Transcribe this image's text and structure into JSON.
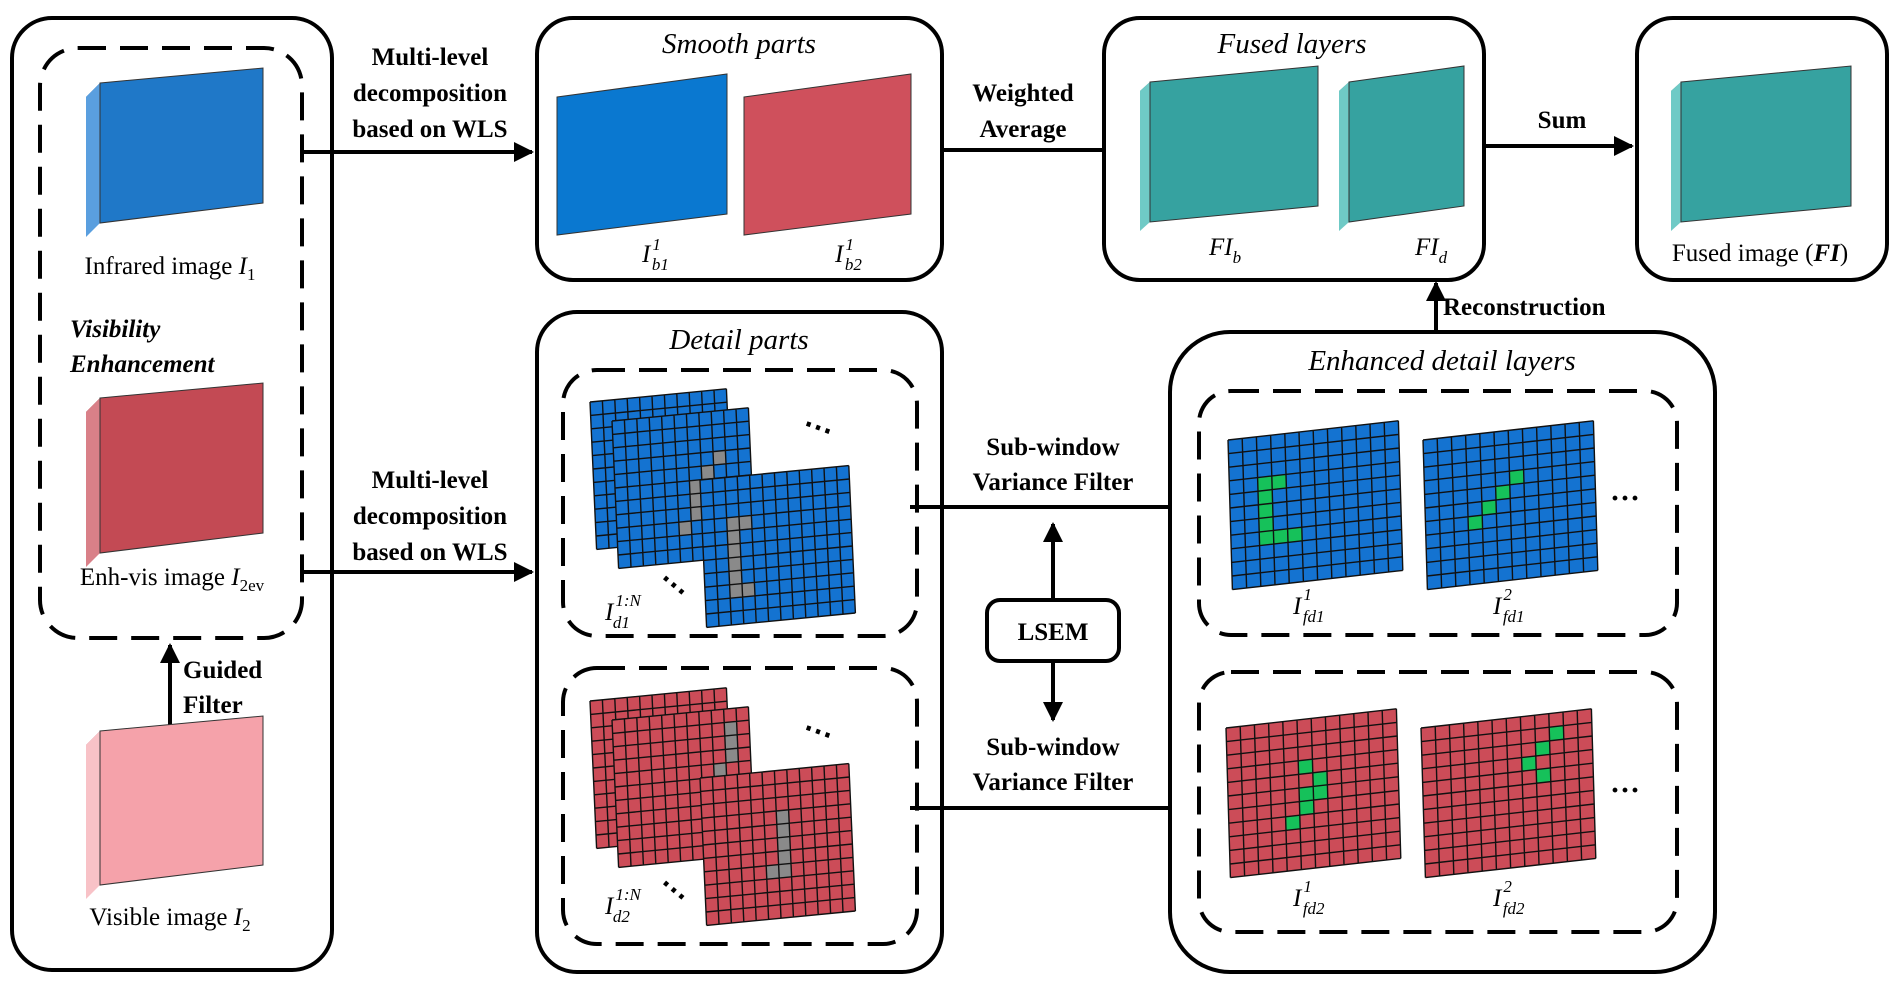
{
  "colors": {
    "infrared": "#1f78c8",
    "infrared_top": "#1a5fa0",
    "infrared_side": "#5a9fdf",
    "enhvis": "#c34a54",
    "enhvis_top": "#9f3a43",
    "enhvis_side": "#d98088",
    "visible": "#f5a2aa",
    "visible_top": "#c97179",
    "visible_side": "#f8c2c7",
    "smooth_blue": "#0a78d0",
    "smooth_red": "#cf505c",
    "fused": "#36a2a0",
    "fused_top": "#2a7f7d",
    "fused_side": "#6fcac6",
    "grid_blue": "#1473d1",
    "grid_red": "#cc4c58",
    "gray_cell": "#8a8a8a",
    "green_cell": "#16c15a"
  },
  "input_panel": {
    "infrared_caption": "Infrared image ",
    "infrared_sym": "I",
    "infrared_sub": "1",
    "enhancement_line1": "Visibility",
    "enhancement_line2": "Enhancement",
    "enhvis_caption": "Enh-vis image ",
    "enhvis_sym": "I",
    "enhvis_sub": "2ev",
    "visible_caption": "Visible image ",
    "visible_sym": "I",
    "visible_sub": "2",
    "guided_line1": "Guided",
    "guided_line2": "Filter"
  },
  "decomp_top": {
    "line1": "Multi-level",
    "line2": "decomposition",
    "line3": "based on WLS"
  },
  "decomp_bottom": {
    "line1": "Multi-level",
    "line2": "decomposition",
    "line3": "based on WLS"
  },
  "smooth_panel": {
    "title": "Smooth parts",
    "label1_sym": "I",
    "label1_sup": "1",
    "label1_sub": "b1",
    "label2_sym": "I",
    "label2_sup": "1",
    "label2_sub": "b2"
  },
  "weighted": {
    "line1": "Weighted",
    "line2": "Average"
  },
  "fused_panel": {
    "title": "Fused layers",
    "label1_sym": "FI",
    "label1_sub": "b",
    "label2_sym": "FI",
    "label2_sub": "d"
  },
  "sum_label": "Sum",
  "output_panel": {
    "caption_prefix": "Fused image (",
    "caption_sym": "FI",
    "caption_suffix": ")"
  },
  "reconstruction_label": "Reconstruction",
  "detail_panel": {
    "title": "Detail parts",
    "label1_sym": "I",
    "label1_sup": "1:N",
    "label1_sub": "d1",
    "label2_sym": "I",
    "label2_sup": "1:N",
    "label2_sub": "d2",
    "ellipsis": "⋯"
  },
  "svf_top": {
    "line1": "Sub-window",
    "line2": "Variance Filter"
  },
  "svf_bottom": {
    "line1": "Sub-window",
    "line2": "Variance Filter"
  },
  "lsem_label": "LSEM",
  "enhanced_panel": {
    "title": "Enhanced detail layers",
    "label1_sym": "I",
    "label1_sup": "1",
    "label1_sub": "fd1",
    "label2_sym": "I",
    "label2_sup": "2",
    "label2_sub": "fd1",
    "label3_sym": "I",
    "label3_sup": "1",
    "label3_sub": "fd2",
    "label4_sym": "I",
    "label4_sup": "2",
    "label4_sub": "fd2",
    "ellipsis": "···"
  }
}
